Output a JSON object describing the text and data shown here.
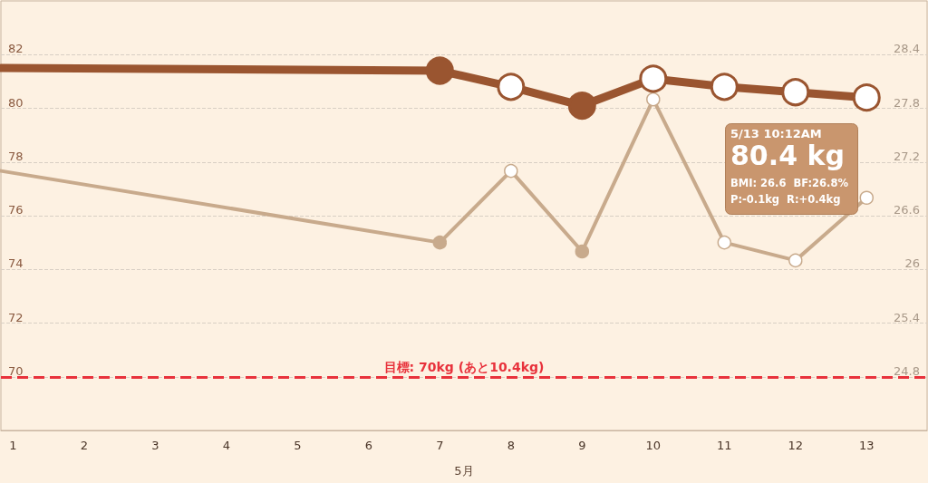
{
  "chart_data": {
    "type": "line",
    "xlabel": "5月",
    "x": [
      0.83,
      7,
      8,
      9,
      10,
      11,
      12,
      13
    ],
    "series": [
      {
        "color": "#9a5530",
        "values": [
          81.5,
          81.4,
          80.8,
          80.1,
          81.1,
          80.8,
          80.6,
          80.4
        ],
        "colors": [
          "#9a5530",
          "#9a5530",
          "#ffffff",
          "#9a5530",
          "#ffffff",
          "#ffffff",
          "#ffffff",
          "#ffffff"
        ]
      },
      {
        "color": "#c8aa8c",
        "axis": "y2",
        "values": [
          27.1,
          26.3,
          27.1,
          26.2,
          27.9,
          26.3,
          26.1,
          26.8
        ],
        "colors": [
          "#c8aa8c",
          "#c8aa8c",
          "#ffffff",
          "#c8aa8c",
          "#ffffff",
          "#ffffff",
          "#ffffff",
          "#ffffff"
        ]
      }
    ],
    "xlim": [
      0.83,
      13.85
    ],
    "xticks": [
      1,
      2,
      3,
      4,
      5,
      6,
      7,
      8,
      9,
      10,
      11,
      12,
      13
    ],
    "ylim": [
      68,
      84
    ],
    "yticks": [
      70,
      72,
      74,
      76,
      78,
      80,
      82
    ],
    "y2lim": [
      24.2,
      29.0
    ],
    "y2ticks": [
      24.8,
      25.4,
      26.0,
      26.6,
      27.2,
      27.8,
      28.4
    ],
    "ref_lines": [
      {
        "axis": "y",
        "value": 70,
        "label": "目標: 70kg (あと10.4kg)",
        "color": "#e8323c",
        "line_style": "dashed"
      }
    ],
    "annotations": [
      "5/13 10:12AM",
      "80.4 kg",
      "BMI: 26.6  BF:26.8%",
      "P:-0.1kg  R:+0.4kg"
    ],
    "grid": "y",
    "marker": "circle",
    "line_style": "solid"
  }
}
